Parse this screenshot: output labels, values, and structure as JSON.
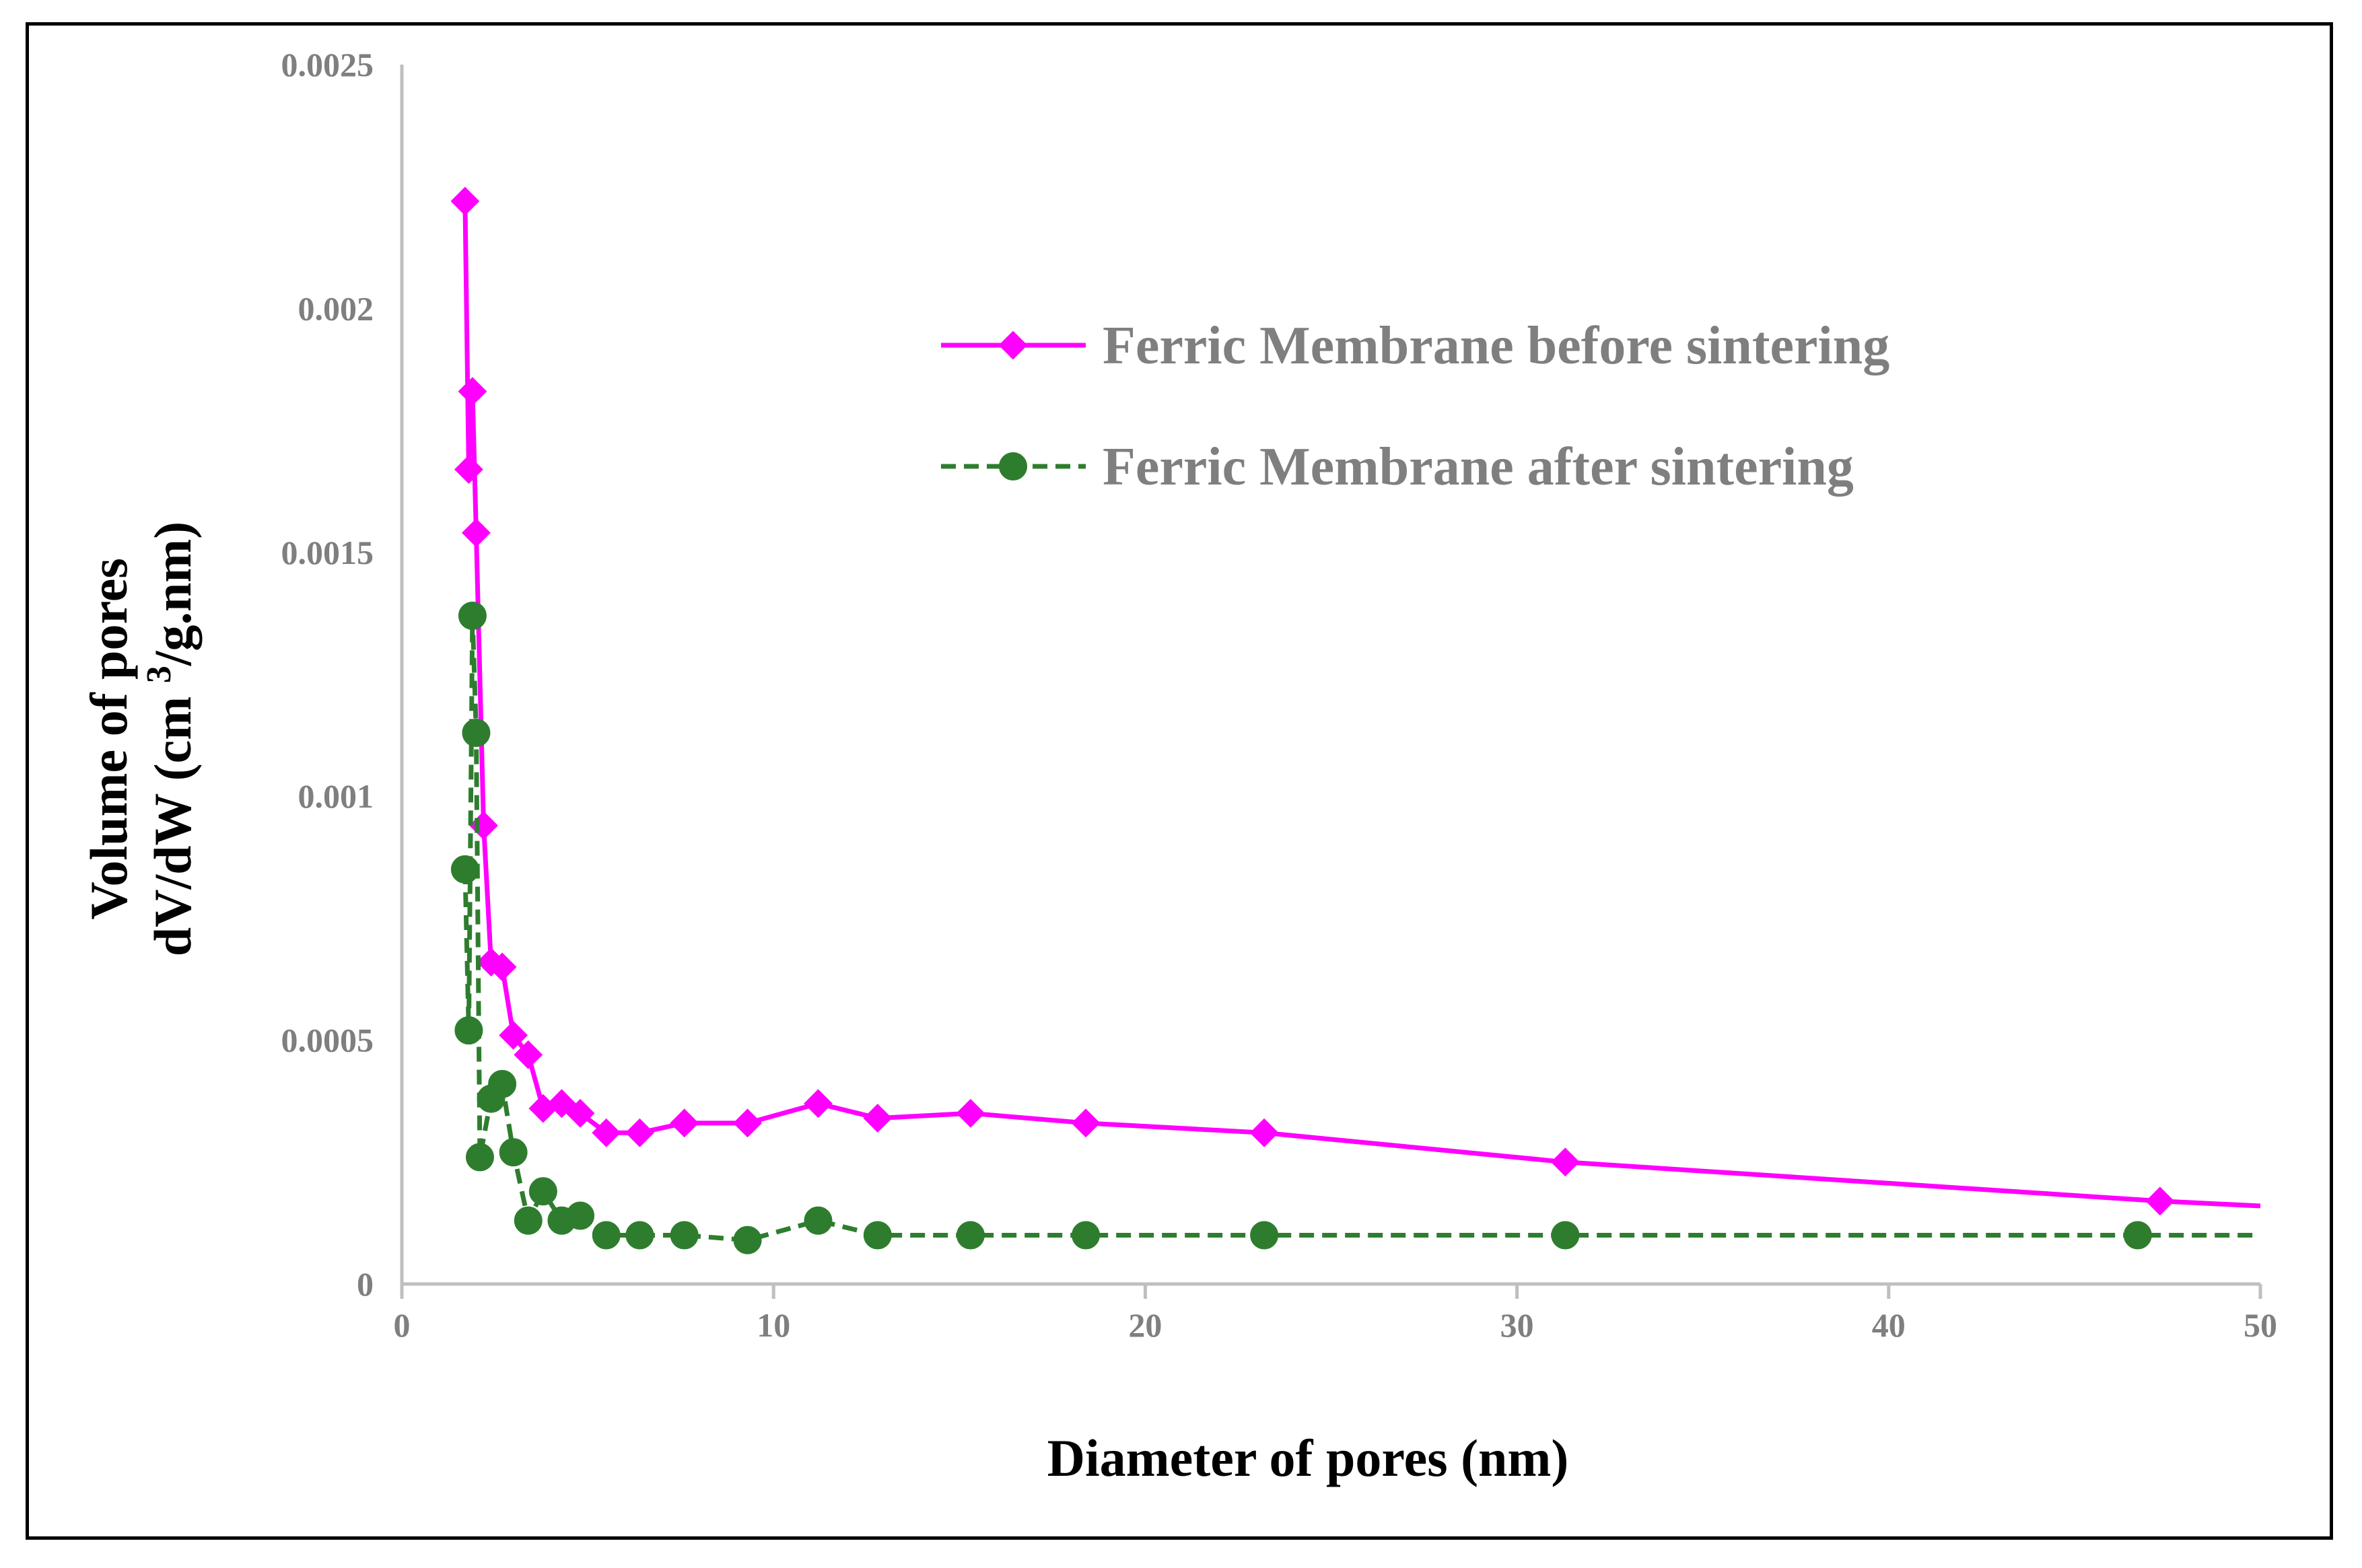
{
  "chart_data": {
    "type": "line",
    "title": "",
    "xlabel": "Diameter of pores (nm)",
    "ylabel_line1": "Volume of pores",
    "ylabel_line2_prefix": "dV/dW (cm ",
    "ylabel_line2_sup": "3",
    "ylabel_line2_suffix": "/g.nm)",
    "xlim": [
      0,
      50
    ],
    "ylim": [
      0,
      0.0025
    ],
    "x_ticks": [
      0,
      10,
      20,
      30,
      40,
      50
    ],
    "x_tick_labels": [
      "0",
      "10",
      "20",
      "30",
      "40",
      "50"
    ],
    "y_ticks": [
      0,
      0.0005,
      0.001,
      0.0015,
      0.002,
      0.0025
    ],
    "y_tick_labels": [
      "0",
      "0.0005",
      "0.001",
      "0.0015",
      "0.002",
      "0.0025"
    ],
    "legend_position": "top-right",
    "series": [
      {
        "name": "Ferric Membrane before sintering",
        "color": "#ff00ff",
        "line_style": "solid",
        "marker": "diamond",
        "x": [
          1.7,
          1.8,
          1.9,
          2.0,
          2.2,
          2.4,
          2.7,
          3.0,
          3.4,
          3.8,
          4.3,
          4.8,
          5.5,
          6.4,
          7.6,
          9.3,
          11.2,
          12.8,
          15.3,
          18.4,
          23.2,
          31.3,
          47.3,
          50
        ],
        "y": [
          0.00222,
          0.00167,
          0.00183,
          0.00154,
          0.00094,
          0.00066,
          0.00065,
          0.00051,
          0.00047,
          0.00036,
          0.00037,
          0.00035,
          0.00031,
          0.00031,
          0.00033,
          0.00033,
          0.00037,
          0.00034,
          0.00035,
          0.00033,
          0.00031,
          0.00025,
          0.00017,
          0.00016
        ],
        "markers_shown": [
          true,
          true,
          true,
          true,
          true,
          true,
          true,
          true,
          true,
          true,
          true,
          true,
          true,
          true,
          true,
          true,
          true,
          true,
          true,
          true,
          true,
          true,
          true,
          false
        ]
      },
      {
        "name": "Ferric Membrane after sintering",
        "color": "#2e7d2e",
        "line_style": "dashed",
        "marker": "circle",
        "x": [
          1.7,
          1.8,
          1.9,
          2.0,
          2.1,
          2.4,
          2.7,
          3.0,
          3.4,
          3.8,
          4.3,
          4.8,
          5.5,
          6.4,
          7.6,
          9.3,
          11.2,
          12.8,
          15.3,
          18.4,
          23.2,
          31.3,
          46.7,
          50
        ],
        "y": [
          0.00085,
          0.00052,
          0.00137,
          0.00113,
          0.00026,
          0.00038,
          0.00041,
          0.00027,
          0.00013,
          0.00019,
          0.00013,
          0.00014,
          0.0001,
          0.0001,
          0.0001,
          9e-05,
          0.00013,
          0.0001,
          0.0001,
          0.0001,
          0.0001,
          0.0001,
          0.0001,
          0.0001
        ],
        "markers_shown": [
          true,
          true,
          true,
          true,
          true,
          true,
          true,
          true,
          true,
          true,
          true,
          true,
          true,
          true,
          true,
          true,
          true,
          true,
          true,
          true,
          true,
          true,
          true,
          false
        ]
      }
    ]
  }
}
